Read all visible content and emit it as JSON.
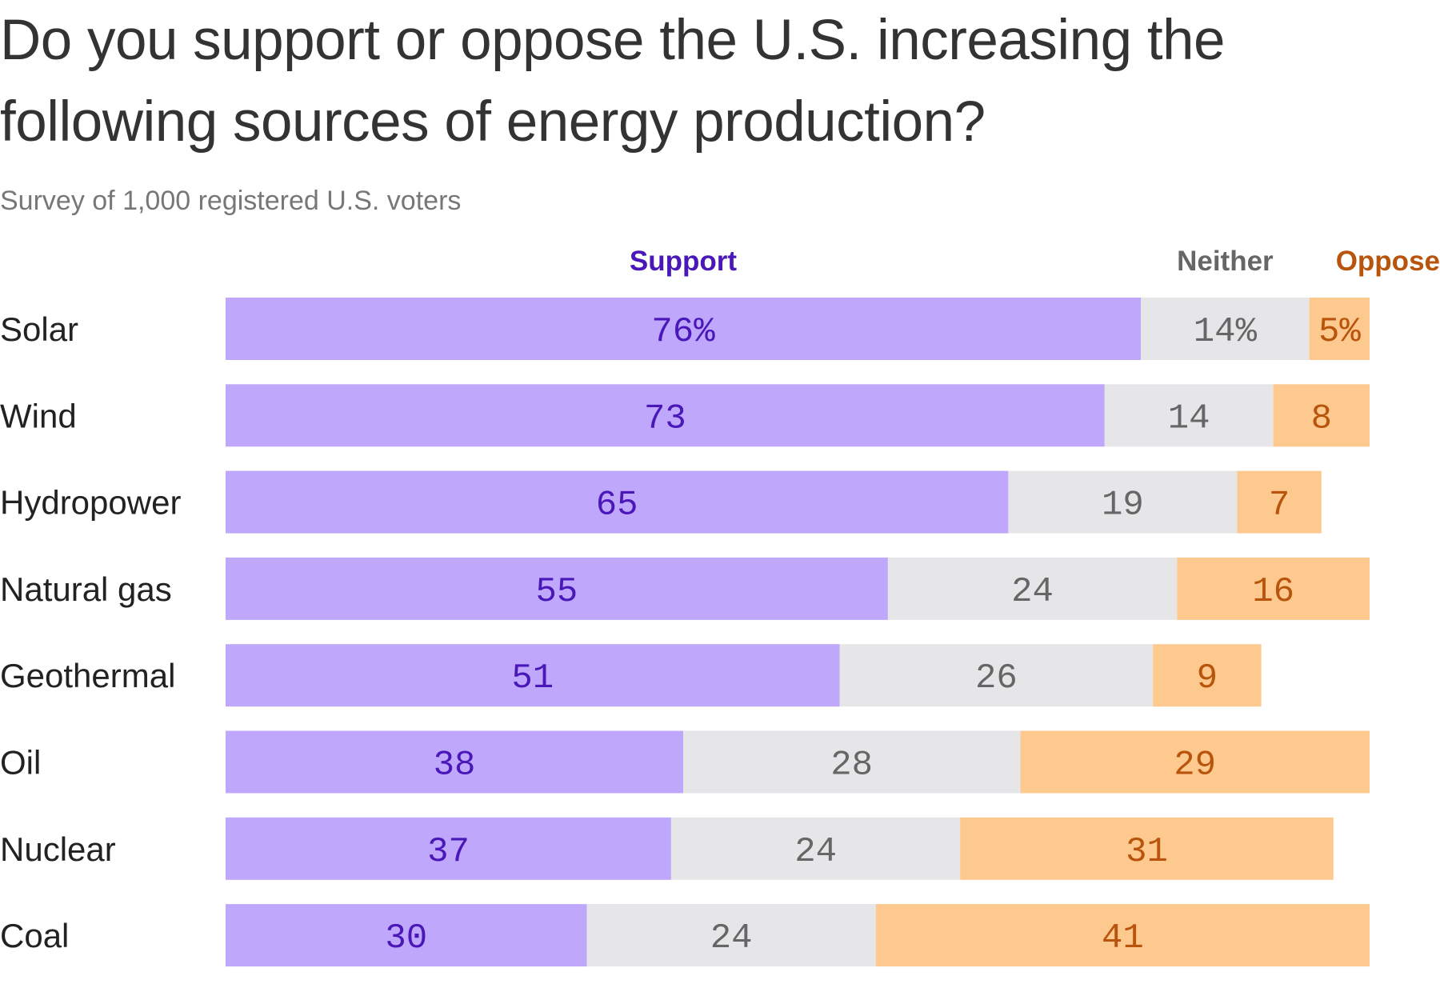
{
  "title": "Do you support or oppose the U.S. increasing the following sources of energy production?",
  "subtitle": "Survey of 1,000 registered U.S. voters",
  "chart_data": {
    "type": "bar",
    "orientation": "horizontal",
    "stacked": true,
    "categories": [
      "Solar",
      "Wind",
      "Hydropower",
      "Natural gas",
      "Geothermal",
      "Oil",
      "Nuclear",
      "Coal"
    ],
    "series": [
      {
        "name": "Support",
        "values": [
          76,
          73,
          65,
          55,
          51,
          38,
          37,
          30
        ],
        "color": "#bfa8fb",
        "text_color": "#4a17b8"
      },
      {
        "name": "Neither",
        "values": [
          14,
          14,
          19,
          24,
          26,
          28,
          24,
          24
        ],
        "color": "#e6e6e8",
        "text_color": "#666666"
      },
      {
        "name": "Oppose",
        "values": [
          5,
          8,
          7,
          16,
          9,
          29,
          31,
          41
        ],
        "color": "#fec98f",
        "text_color": "#b8540b"
      }
    ],
    "value_labels": [
      [
        "76%",
        "14%",
        "5%"
      ],
      [
        "73",
        "14",
        "8"
      ],
      [
        "65",
        "19",
        "7"
      ],
      [
        "55",
        "24",
        "16"
      ],
      [
        "51",
        "26",
        "9"
      ],
      [
        "38",
        "28",
        "29"
      ],
      [
        "37",
        "24",
        "31"
      ],
      [
        "30",
        "24",
        "41"
      ]
    ],
    "xlim": [
      0,
      95
    ],
    "legend_labels": [
      "Support",
      "Neither",
      "Oppose"
    ],
    "legend_colors": [
      "#4a17b8",
      "#666666",
      "#b8540b"
    ],
    "legend_placement": "top",
    "grid": false
  }
}
